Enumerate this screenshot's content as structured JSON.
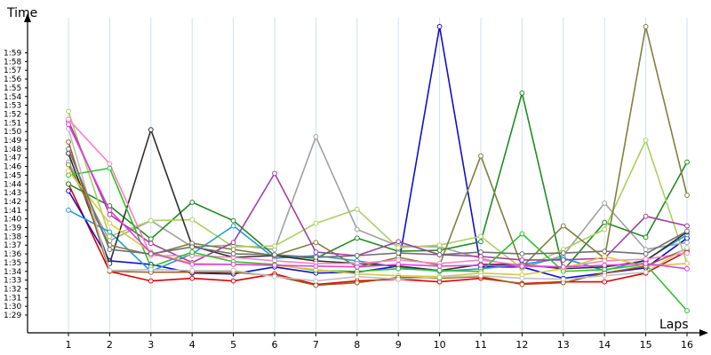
{
  "chart_data": {
    "type": "line",
    "title": "",
    "ylabel": "Time",
    "xlabel": "Laps",
    "x": [
      1,
      2,
      3,
      4,
      5,
      6,
      7,
      8,
      9,
      10,
      11,
      12,
      13,
      14,
      15,
      16
    ],
    "y_ticks_sec": [
      89,
      90,
      91,
      92,
      93,
      94,
      95,
      96,
      97,
      98,
      99,
      100,
      101,
      102,
      103,
      104,
      105,
      106,
      107,
      108,
      109,
      110,
      111,
      112,
      113,
      114,
      115,
      116,
      117,
      118,
      119
    ],
    "y_tick_labels": [
      "1:29",
      "1:30",
      "1:31",
      "1:32",
      "1:33",
      "1:34",
      "1:35",
      "1:36",
      "1:37",
      "1:38",
      "1:39",
      "1:40",
      "1:41",
      "1:42",
      "1:43",
      "1:44",
      "1:45",
      "1:46",
      "1:47",
      "1:48",
      "1:49",
      "1:50",
      "1:51",
      "1:52",
      "1:53",
      "1:54",
      "1:55",
      "1:56",
      "1:57",
      "1:58",
      "1:59"
    ],
    "ylim_sec": [
      88,
      120
    ],
    "grid": true,
    "legend": "none",
    "series": [
      {
        "color": "#e00000",
        "values": [
          104.0,
          94.0,
          92.9,
          93.2,
          92.9,
          93.7,
          92.5,
          92.9,
          93.1,
          92.8,
          93.2,
          92.6,
          92.8,
          92.8,
          93.8,
          96.3
        ]
      },
      {
        "color": "#1010cc",
        "values": [
          103.2,
          95.2,
          94.8,
          93.8,
          93.7,
          94.5,
          93.8,
          93.9,
          94.6,
          122.0,
          94.5,
          94.5,
          93.2,
          93.8,
          94.4,
          97.8
        ]
      },
      {
        "color": "#a0a0a0",
        "values": [
          106.5,
          97.5,
          99.8,
          96.8,
          97.0,
          96.5,
          109.4,
          98.8,
          96.9,
          96.8,
          95.5,
          94.4,
          95.8,
          101.8,
          96.5,
          97.3
        ]
      },
      {
        "color": "#228b22",
        "values": [
          104.0,
          101.5,
          97.7,
          101.9,
          99.8,
          95.8,
          95.5,
          97.8,
          96.3,
          96.4,
          97.4,
          114.4,
          94.1,
          99.6,
          97.9,
          106.5
        ]
      },
      {
        "color": "#a8d060",
        "values": [
          112.3,
          98.0,
          99.8,
          99.9,
          96.8,
          96.9,
          99.5,
          101.1,
          96.7,
          97.0,
          98.0,
          94.3,
          96.5,
          98.8,
          109.0,
          94.9
        ]
      },
      {
        "color": "#2299dd",
        "values": [
          101.0,
          98.5,
          94.0,
          96.0,
          99.2,
          95.5,
          95.8,
          95.2,
          94.5,
          94.0,
          94.3,
          94.8,
          95.5,
          94.1,
          95.3,
          98.2
        ]
      },
      {
        "color": "#303030",
        "values": [
          107.5,
          94.9,
          110.2,
          96.9,
          95.6,
          95.8,
          95.2,
          94.9,
          94.6,
          94.1,
          94.8,
          94.8,
          94.3,
          94.5,
          95.2,
          98.5
        ]
      },
      {
        "color": "#808040",
        "values": [
          106.2,
          97.0,
          95.9,
          97.2,
          96.5,
          95.8,
          97.3,
          94.5,
          95.6,
          94.7,
          107.2,
          94.5,
          99.2,
          95.5,
          122.0,
          102.7
        ]
      },
      {
        "color": "#a040a0",
        "values": [
          111.2,
          100.5,
          97.2,
          95.0,
          97.3,
          105.2,
          96.2,
          95.8,
          97.4,
          95.9,
          95.7,
          95.3,
          95.3,
          95.5,
          100.3,
          99.2
        ]
      },
      {
        "color": "#ff80c0",
        "values": [
          111.4,
          106.3,
          95.8,
          95.8,
          95.6,
          95.2,
          94.9,
          94.9,
          95.3,
          94.9,
          95.3,
          94.7,
          94.5,
          95.2,
          95.4,
          96.1
        ]
      },
      {
        "color": "#30c030",
        "values": [
          105.0,
          105.8,
          94.5,
          96.2,
          95.1,
          94.8,
          94.1,
          94.0,
          94.3,
          94.1,
          94.0,
          98.3,
          94.0,
          94.2,
          94.8,
          89.5
        ]
      },
      {
        "color": "#d8c840",
        "values": [
          105.5,
          99.5,
          96.2,
          94.9,
          94.8,
          94.7,
          94.2,
          93.7,
          93.5,
          93.4,
          93.8,
          93.6,
          94.3,
          95.7,
          94.6,
          94.9
        ]
      },
      {
        "color": "#a06020",
        "values": [
          108.8,
          94.0,
          93.9,
          93.9,
          93.9,
          93.5,
          92.4,
          92.7,
          93.3,
          93.2,
          93.4,
          92.5,
          92.7,
          93.8,
          94.6,
          96.6
        ]
      },
      {
        "color": "#c0c0c0",
        "values": [
          110.3,
          94.1,
          94.2,
          94.1,
          94.1,
          93.4,
          92.9,
          93.4,
          93.1,
          93.3,
          93.5,
          93.2,
          93.1,
          93.5,
          93.9,
          96.7
        ]
      },
      {
        "color": "#e040e0",
        "values": [
          110.8,
          101.0,
          96.1,
          94.8,
          94.8,
          94.7,
          94.6,
          94.5,
          94.8,
          94.6,
          94.7,
          94.6,
          94.5,
          94.7,
          94.9,
          94.3
        ]
      },
      {
        "color": "#707070",
        "values": [
          108.0,
          96.5,
          96.0,
          96.8,
          96.0,
          95.9,
          95.6,
          95.8,
          96.1,
          95.9,
          96.2,
          96.0,
          96.1,
          96.3,
          96.0,
          98.6
        ]
      }
    ]
  }
}
